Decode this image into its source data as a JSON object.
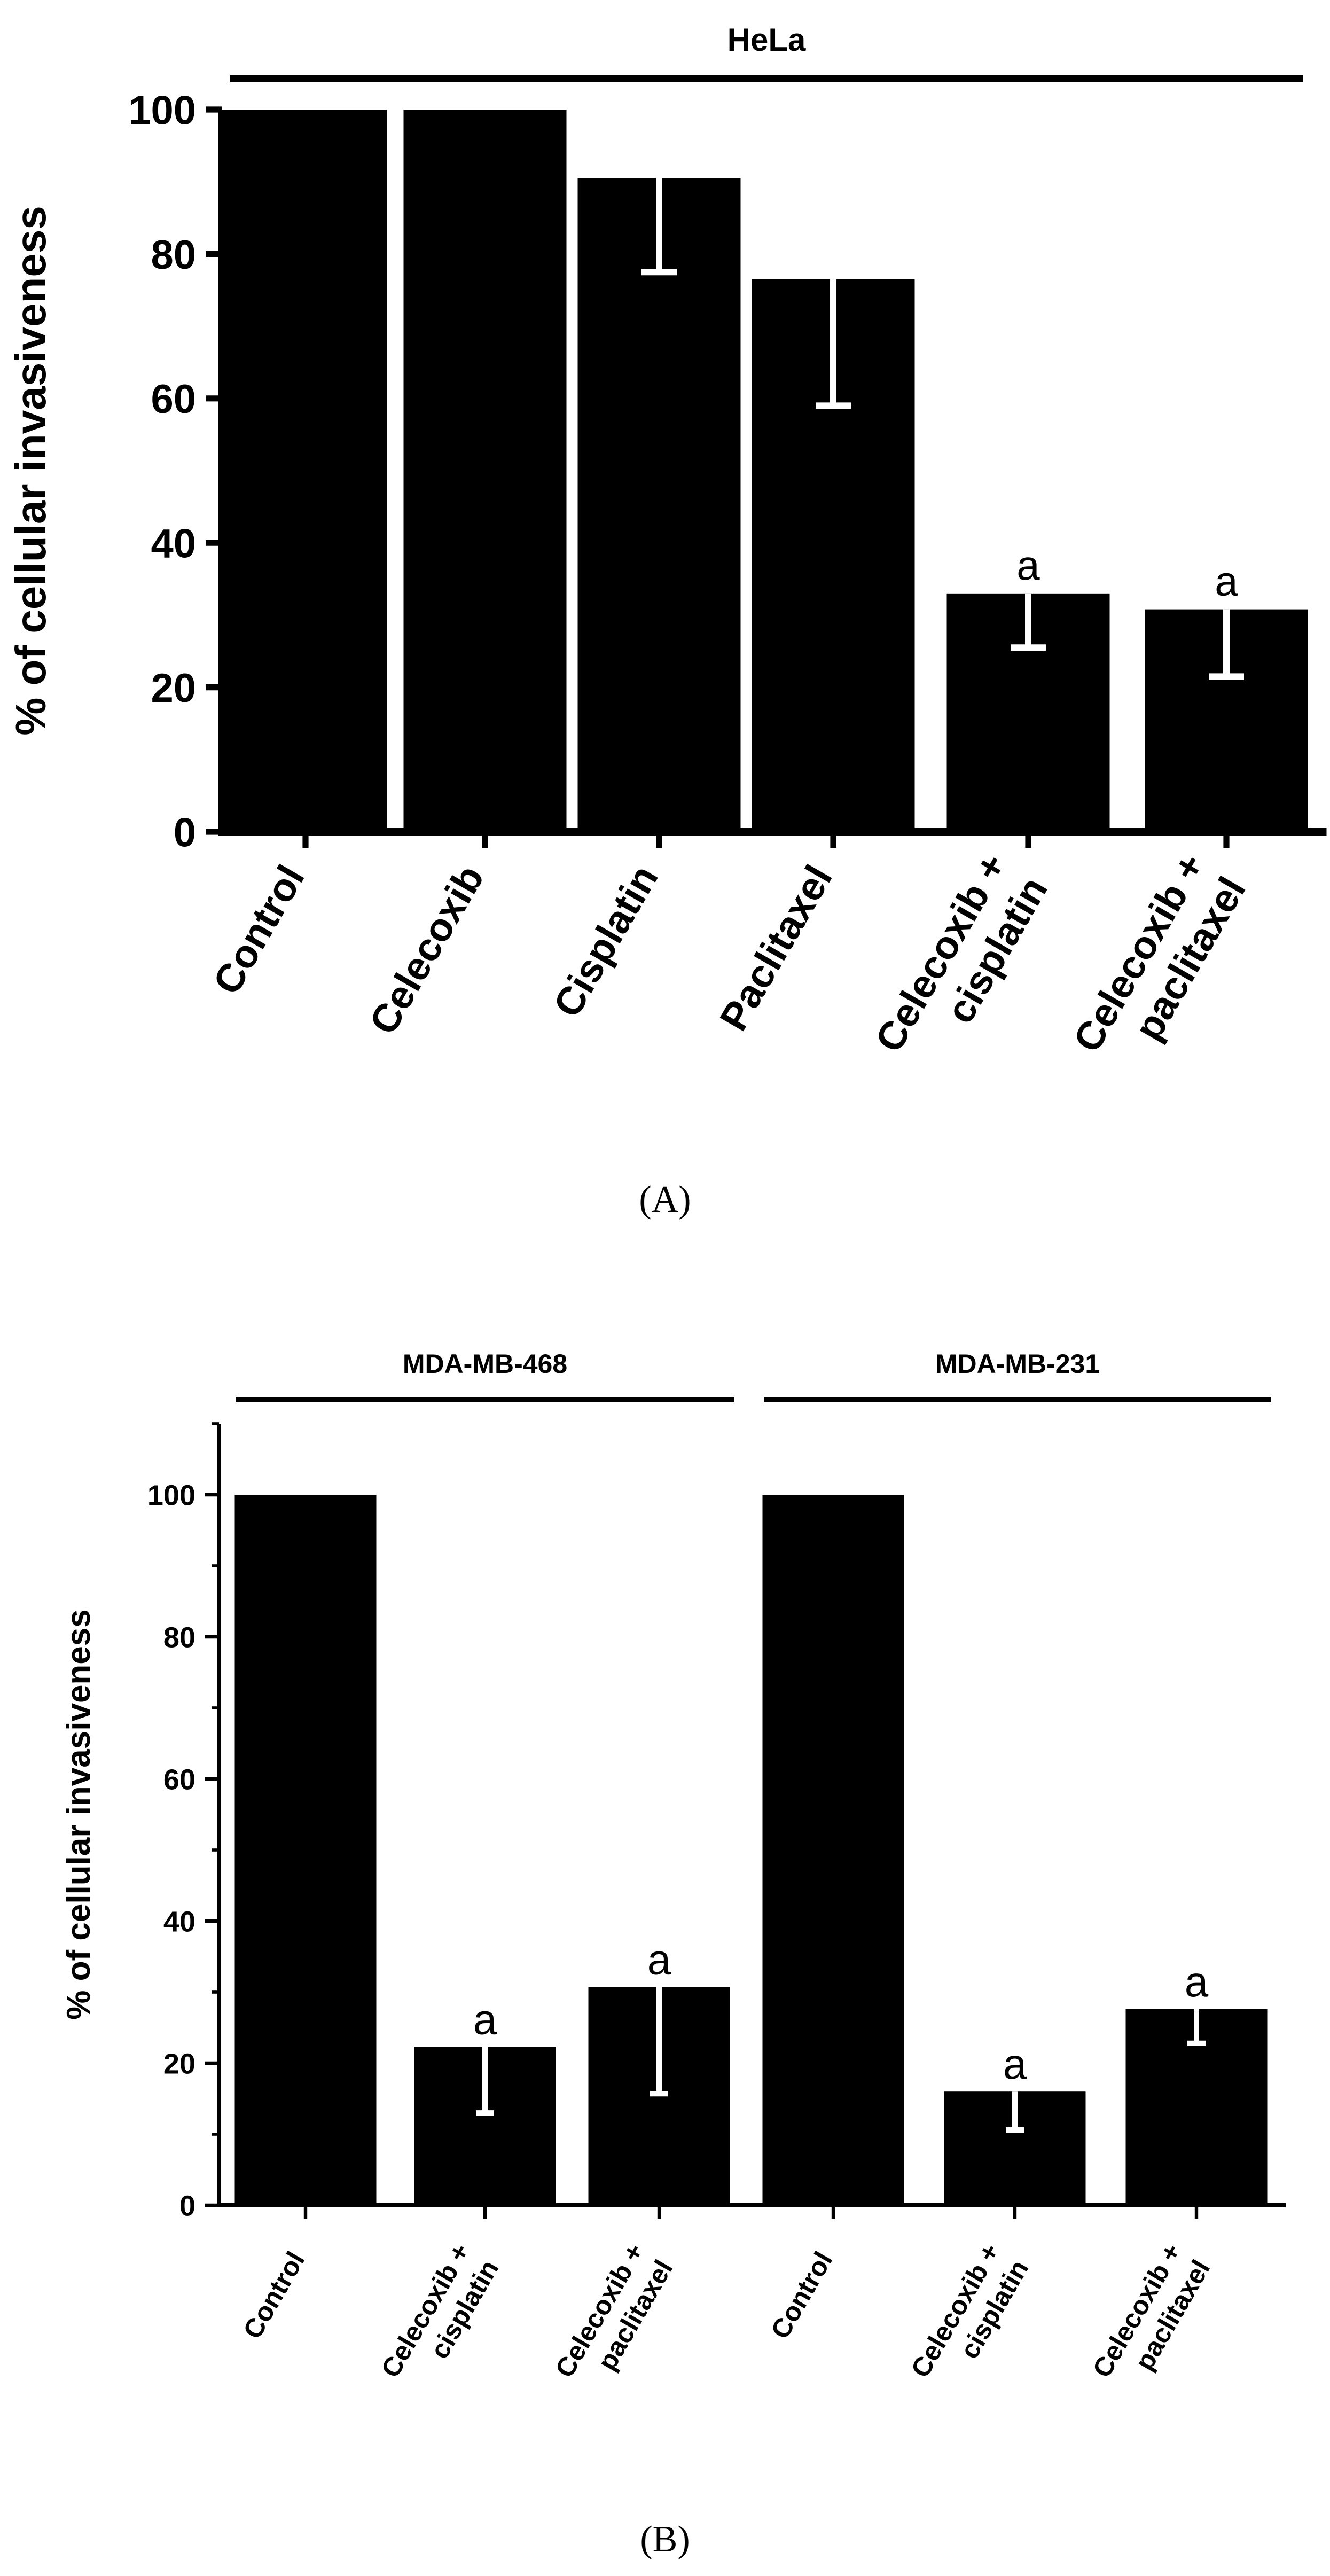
{
  "chart_data": [
    {
      "panel": "(A)",
      "type": "bar",
      "title": "HeLa",
      "ylabel": "% of cellular invasiveness",
      "xlabel": "",
      "ylim": [
        0,
        100
      ],
      "yticks": [
        "0",
        "20",
        "40",
        "60",
        "80",
        "100"
      ],
      "grid": false,
      "bar_color": "#000000",
      "error_color": "#ffffff",
      "categories": [
        [
          "Control"
        ],
        [
          "Celecoxib"
        ],
        [
          "Cisplatin"
        ],
        [
          "Paclitaxel"
        ],
        [
          "Celecoxib +",
          "cisplatin"
        ],
        [
          "Celecoxib +",
          "paclitaxel"
        ]
      ],
      "values": [
        100,
        100,
        90.5,
        76.5,
        33,
        30.8
      ],
      "error_low": [
        null,
        null,
        77.5,
        59,
        25.5,
        21.5
      ],
      "annotations": [
        "",
        "",
        "",
        "",
        "a",
        "a"
      ]
    },
    {
      "panel": "(B)",
      "type": "bar",
      "ylabel": "% of cellular invasiveness",
      "xlabel": "",
      "ylim": [
        0,
        110
      ],
      "yticks": [
        "0",
        "20",
        "40",
        "60",
        "80",
        "100"
      ],
      "grid": false,
      "bar_color": "#000000",
      "error_color": "#ffffff",
      "groups": [
        {
          "name": "MDA-MB-468",
          "span": [
            0,
            2
          ]
        },
        {
          "name": "MDA-MB-231",
          "span": [
            3,
            5
          ]
        }
      ],
      "categories": [
        [
          "Control"
        ],
        [
          "Celecoxib +",
          "cisplatin"
        ],
        [
          "Celecoxib +",
          "paclitaxel"
        ],
        [
          "Control"
        ],
        [
          "Celecoxib +",
          "cisplatin"
        ],
        [
          "Celecoxib +",
          "paclitaxel"
        ]
      ],
      "values": [
        100,
        22.3,
        30.7,
        100,
        16,
        27.6
      ],
      "error_low": [
        null,
        13,
        15.7,
        null,
        10.6,
        22.8
      ],
      "annotations": [
        "",
        "a",
        "a",
        "",
        "a",
        "a"
      ]
    }
  ]
}
